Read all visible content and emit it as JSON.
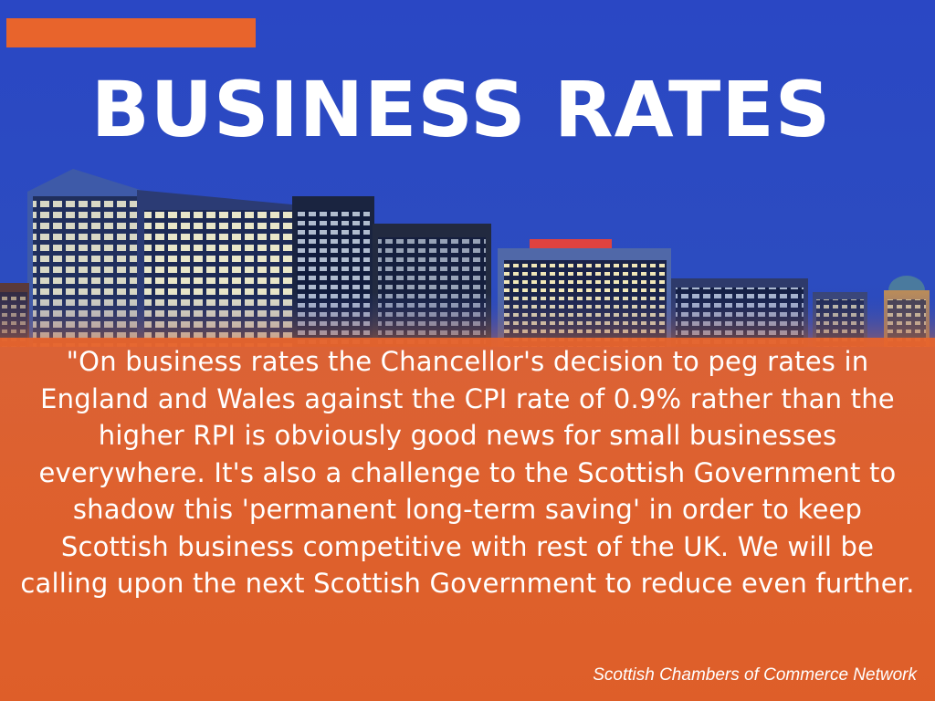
{
  "header": {
    "title": "BUSINESS RATES"
  },
  "quote": {
    "text": "\"On business rates the Chancellor's decision to peg rates in England and Wales against the CPI rate of 0.9% rather than the higher RPI is obviously good news for small businesses everywhere. It's also a challenge to the Scottish Government to shadow this 'permanent long-term saving' in order to keep Scottish business competitive with rest of the UK. We will be calling upon the next Scottish Government to reduce even further.",
    "attribution": "Scottish Chambers of Commerce Network"
  },
  "colors": {
    "sky": "#2c4cc0",
    "accent": "#e8642c",
    "text": "#ffffff"
  }
}
